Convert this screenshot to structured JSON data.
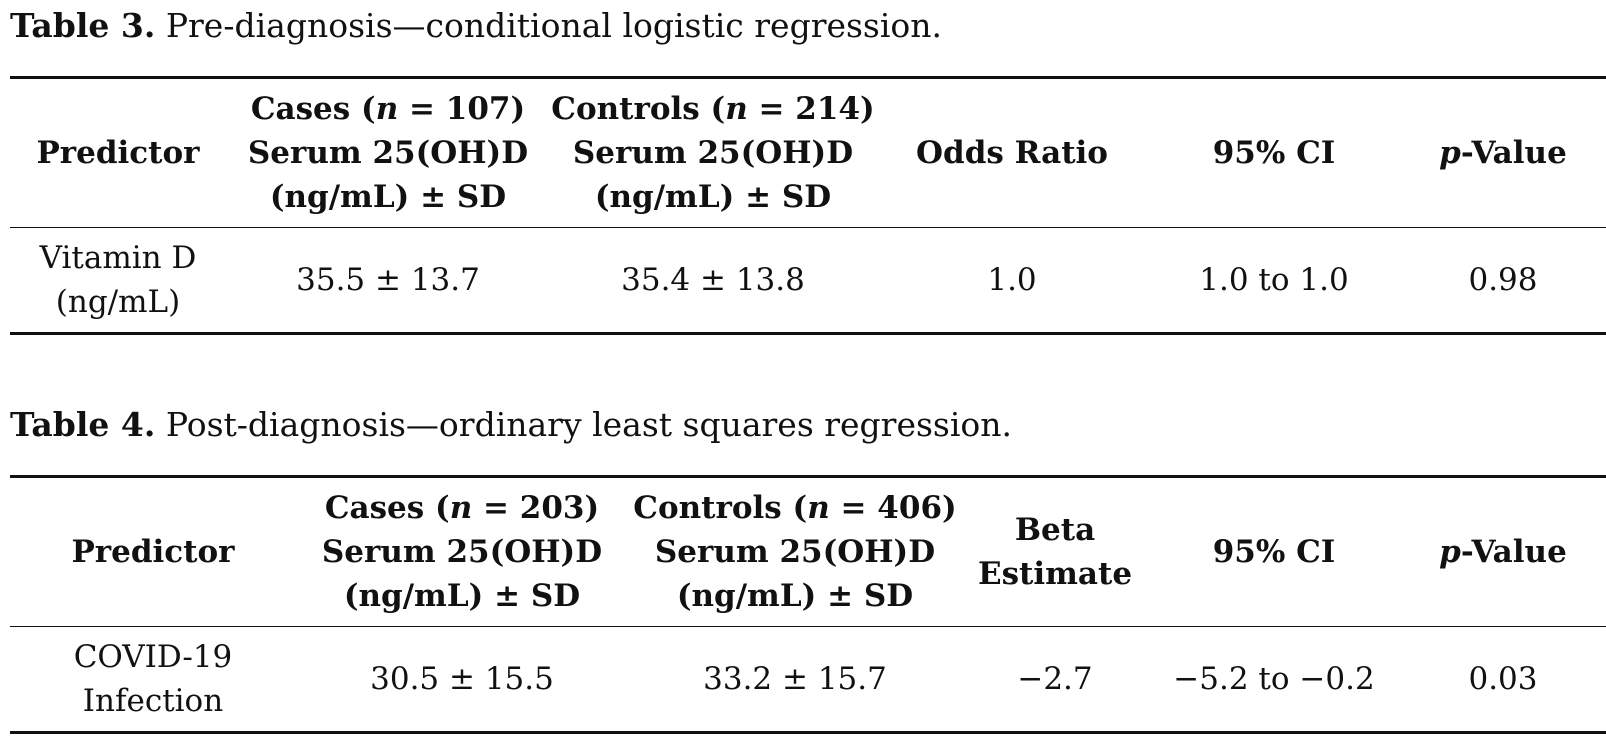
{
  "table3": {
    "caption_lead": "Table 3.",
    "caption_text": "Pre-diagnosis—conditional logistic regression.",
    "headers": {
      "predictor": "Predictor",
      "cases": {
        "line1_a": "Cases (",
        "line1_n": "n",
        "line1_b": " = 107)",
        "line2": "Serum 25(OH)D",
        "line3": "(ng/mL) ± SD"
      },
      "controls": {
        "line1_a": "Controls (",
        "line1_n": "n",
        "line1_b": " = 214)",
        "line2": "Serum 25(OH)D",
        "line3": "(ng/mL) ± SD"
      },
      "estimate": {
        "line1": "Odds Ratio"
      },
      "ci": "95% CI",
      "p_a": "p",
      "p_b": "-Value"
    },
    "row": {
      "predictor_line1": "Vitamin D",
      "predictor_line2": "(ng/mL)",
      "cases": "35.5 ± 13.7",
      "controls": "35.4 ± 13.8",
      "estimate": "1.0",
      "ci": "1.0 to 1.0",
      "p": "0.98"
    }
  },
  "table4": {
    "caption_lead": "Table 4.",
    "caption_text": "Post-diagnosis—ordinary least squares regression.",
    "headers": {
      "predictor": "Predictor",
      "cases": {
        "line1_a": "Cases (",
        "line1_n": "n",
        "line1_b": " = 203)",
        "line2": "Serum 25(OH)D",
        "line3": "(ng/mL) ± SD"
      },
      "controls": {
        "line1_a": "Controls (",
        "line1_n": "n",
        "line1_b": " = 406)",
        "line2": "Serum 25(OH)D",
        "line3": "(ng/mL) ± SD"
      },
      "estimate": {
        "line1": "Beta",
        "line2": "Estimate"
      },
      "ci": "95% CI",
      "p_a": "p",
      "p_b": "-Value"
    },
    "row": {
      "predictor_line1": "COVID-19",
      "predictor_line2": "Infection",
      "cases": "30.5 ± 15.5",
      "controls": "33.2 ± 15.7",
      "estimate": "−2.7",
      "ci": "−5.2 to −0.2",
      "p": "0.03"
    }
  }
}
